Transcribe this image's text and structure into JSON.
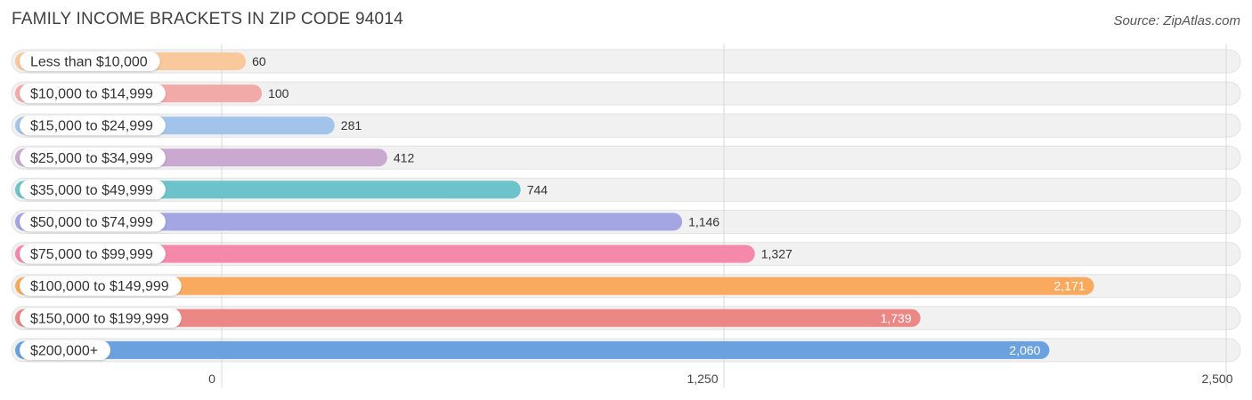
{
  "header": {
    "title": "FAMILY INCOME BRACKETS IN ZIP CODE 94014",
    "source": "Source: ZipAtlas.com"
  },
  "chart_data": {
    "type": "bar",
    "orientation": "horizontal",
    "title": "FAMILY INCOME BRACKETS IN ZIP CODE 94014",
    "categories": [
      "Less than $10,000",
      "$10,000 to $14,999",
      "$15,000 to $24,999",
      "$25,000 to $34,999",
      "$35,000 to $49,999",
      "$50,000 to $74,999",
      "$75,000 to $99,999",
      "$100,000 to $149,999",
      "$150,000 to $199,999",
      "$200,000+"
    ],
    "values": [
      60,
      100,
      281,
      412,
      744,
      1146,
      1327,
      2171,
      1739,
      2060
    ],
    "value_labels": [
      "60",
      "100",
      "281",
      "412",
      "744",
      "1,146",
      "1,327",
      "2,171",
      "1,739",
      "2,060"
    ],
    "colors": [
      "#f9c89b",
      "#f2aaa9",
      "#a3c4ea",
      "#c9a9cf",
      "#6cc3cb",
      "#a3a6e2",
      "#f589ab",
      "#f9aa5f",
      "#eb8784",
      "#6aa1de"
    ],
    "xlim": [
      0,
      2500
    ],
    "ticks": [
      0,
      1250,
      2500
    ],
    "tick_labels": [
      "0",
      "1,250",
      "2,500"
    ],
    "grid": true,
    "legend": "none"
  }
}
